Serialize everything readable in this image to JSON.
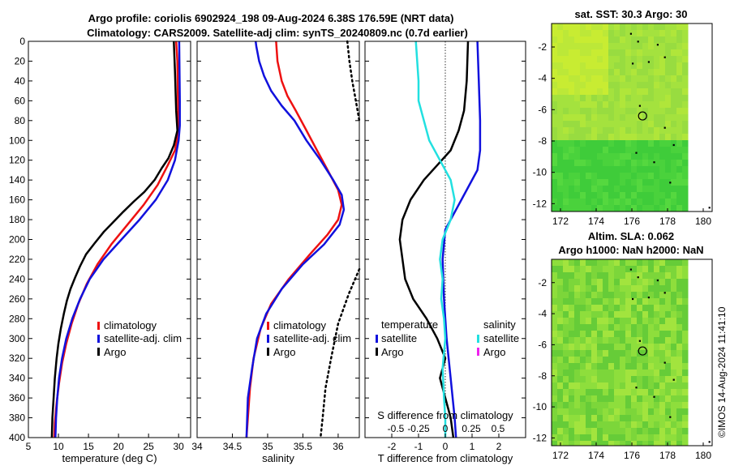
{
  "header": {
    "line1": "Argo profile: coriolis 6902924_198 09-Aug-2024 6.38S 176.59E (NRT data)",
    "line2": "Climatology: CARS2009. Satellite-adj clim: synTS_20240809.nc (0.7d earlier)"
  },
  "colors": {
    "climatology": "#ee1111",
    "satellite": "#1111dd",
    "argo": "#000000",
    "sat_salinity": "#22e0e0",
    "argo_salinity": "#ee22ee",
    "map_light": "#a8e63c",
    "map_dark": "#44cc33"
  },
  "chart_data": [
    {
      "id": "temperature",
      "type": "line",
      "xlabel": "temperature (deg C)",
      "ylabel": "depth",
      "xlim": [
        5,
        32
      ],
      "ylim": [
        0,
        400
      ],
      "xticks": [
        5,
        10,
        15,
        20,
        25,
        30
      ],
      "yticks": [
        0,
        20,
        40,
        60,
        80,
        100,
        120,
        140,
        160,
        180,
        200,
        220,
        240,
        260,
        280,
        300,
        320,
        340,
        360,
        380,
        400
      ],
      "legend": [
        "climatology",
        "satellite-adj. clim",
        "Argo"
      ],
      "series": [
        {
          "name": "climatology",
          "color": "#ee1111",
          "points": [
            [
              29.6,
              0
            ],
            [
              29.8,
              20
            ],
            [
              29.9,
              60
            ],
            [
              30.0,
              90
            ],
            [
              29.4,
              110
            ],
            [
              28.2,
              125
            ],
            [
              26.5,
              145
            ],
            [
              24.2,
              165
            ],
            [
              21.5,
              185
            ],
            [
              18.8,
              205
            ],
            [
              16.5,
              225
            ],
            [
              14.7,
              245
            ],
            [
              13.3,
              265
            ],
            [
              12.2,
              285
            ],
            [
              11.3,
              305
            ],
            [
              10.6,
              325
            ],
            [
              10.1,
              345
            ],
            [
              9.7,
              365
            ],
            [
              9.4,
              385
            ],
            [
              9.3,
              400
            ]
          ]
        },
        {
          "name": "satellite-adj. clim",
          "color": "#1111dd",
          "points": [
            [
              30.1,
              0
            ],
            [
              30.2,
              60
            ],
            [
              30.2,
              85
            ],
            [
              30.0,
              100
            ],
            [
              29.4,
              120
            ],
            [
              28.2,
              140
            ],
            [
              26.2,
              160
            ],
            [
              23.5,
              180
            ],
            [
              20.5,
              200
            ],
            [
              17.5,
              220
            ],
            [
              15.2,
              240
            ],
            [
              13.6,
              260
            ],
            [
              12.3,
              280
            ],
            [
              11.3,
              300
            ],
            [
              10.6,
              320
            ],
            [
              10.1,
              340
            ],
            [
              9.8,
              360
            ],
            [
              9.6,
              380
            ],
            [
              9.5,
              400
            ]
          ]
        },
        {
          "name": "Argo",
          "color": "#000000",
          "points": [
            [
              29.2,
              0
            ],
            [
              29.4,
              30
            ],
            [
              29.6,
              70
            ],
            [
              29.8,
              90
            ],
            [
              29.2,
              105
            ],
            [
              28.3,
              118
            ],
            [
              27.2,
              128
            ],
            [
              26.0,
              140
            ],
            [
              24.3,
              152
            ],
            [
              22.5,
              162
            ],
            [
              20.8,
              172
            ],
            [
              19.2,
              182
            ],
            [
              17.6,
              192
            ],
            [
              16.0,
              204
            ],
            [
              14.6,
              215
            ],
            [
              13.6,
              227
            ],
            [
              12.8,
              238
            ],
            [
              12.0,
              250
            ],
            [
              11.4,
              262
            ],
            [
              10.9,
              275
            ],
            [
              10.4,
              290
            ],
            [
              10.0,
              305
            ],
            [
              9.7,
              320
            ],
            [
              9.4,
              340
            ],
            [
              9.2,
              360
            ],
            [
              9.0,
              380
            ],
            [
              8.9,
              400
            ]
          ]
        }
      ]
    },
    {
      "id": "salinity",
      "type": "line",
      "xlabel": "salinity",
      "xlim": [
        34.0,
        36.3
      ],
      "ylim": [
        0,
        400
      ],
      "xticks": [
        34,
        34.5,
        35,
        35.5,
        36
      ],
      "legend": [
        "climatology",
        "satellite-adj. clim",
        "Argo"
      ],
      "series": [
        {
          "name": "climatology",
          "color": "#ee1111",
          "points": [
            [
              35.12,
              0
            ],
            [
              35.14,
              20
            ],
            [
              35.2,
              40
            ],
            [
              35.28,
              55
            ],
            [
              35.4,
              70
            ],
            [
              35.55,
              90
            ],
            [
              35.7,
              110
            ],
            [
              35.85,
              130
            ],
            [
              36.0,
              150
            ],
            [
              36.05,
              165
            ],
            [
              36.0,
              180
            ],
            [
              35.85,
              195
            ],
            [
              35.6,
              215
            ],
            [
              35.3,
              240
            ],
            [
              35.05,
              265
            ],
            [
              34.9,
              290
            ],
            [
              34.8,
              320
            ],
            [
              34.75,
              350
            ],
            [
              34.72,
              380
            ],
            [
              34.7,
              400
            ]
          ]
        },
        {
          "name": "satellite-adj. clim",
          "color": "#1111dd",
          "points": [
            [
              34.83,
              0
            ],
            [
              34.84,
              5
            ],
            [
              34.88,
              20
            ],
            [
              34.95,
              35
            ],
            [
              35.05,
              50
            ],
            [
              35.2,
              65
            ],
            [
              35.38,
              80
            ],
            [
              35.55,
              100
            ],
            [
              35.75,
              120
            ],
            [
              35.93,
              140
            ],
            [
              36.05,
              155
            ],
            [
              36.08,
              170
            ],
            [
              36.02,
              185
            ],
            [
              35.8,
              205
            ],
            [
              35.5,
              225
            ],
            [
              35.2,
              250
            ],
            [
              34.98,
              275
            ],
            [
              34.85,
              300
            ],
            [
              34.78,
              330
            ],
            [
              34.72,
              360
            ],
            [
              34.7,
              400
            ]
          ]
        },
        {
          "name": "salinity raw",
          "color": "#000000",
          "dotted": true,
          "points": [
            [
              36.13,
              0
            ],
            [
              36.16,
              20
            ],
            [
              36.2,
              40
            ],
            [
              36.25,
              60
            ],
            [
              36.3,
              80
            ]
          ]
        },
        {
          "name": "salinity raw deep",
          "color": "#000000",
          "dotted": true,
          "points": [
            [
              36.3,
              230
            ],
            [
              36.15,
              255
            ],
            [
              36.0,
              285
            ],
            [
              35.9,
              320
            ],
            [
              35.82,
              350
            ],
            [
              35.78,
              380
            ],
            [
              35.75,
              400
            ]
          ]
        }
      ]
    },
    {
      "id": "difference",
      "type": "line",
      "xlabel": "T difference from climatology",
      "xlabel_top": "S difference from climatology",
      "xlim": [
        -3,
        3
      ],
      "ylim": [
        0,
        400
      ],
      "xticks": [
        -2,
        -1,
        0,
        1,
        2
      ],
      "top_ticks": [
        "-0.5",
        "-0.25",
        "0",
        "0.25",
        "0.5"
      ],
      "legend": {
        "temperature_header": "temperature",
        "salinity_header": "salinity",
        "temperature": [
          "satellite",
          "Argo"
        ],
        "salinity": [
          "satellite",
          "Argo"
        ]
      },
      "series": [
        {
          "name": "temperature satellite",
          "color": "#1111dd",
          "points": [
            [
              1.2,
              0
            ],
            [
              1.25,
              40
            ],
            [
              1.3,
              80
            ],
            [
              1.3,
              110
            ],
            [
              1.2,
              130
            ],
            [
              0.6,
              160
            ],
            [
              0.0,
              190
            ],
            [
              -0.1,
              220
            ],
            [
              -0.05,
              260
            ],
            [
              0.05,
              300
            ],
            [
              0.2,
              340
            ],
            [
              0.35,
              380
            ],
            [
              0.4,
              400
            ]
          ]
        },
        {
          "name": "temperature Argo",
          "color": "#000000",
          "points": [
            [
              0.85,
              0
            ],
            [
              0.8,
              40
            ],
            [
              0.7,
              70
            ],
            [
              0.5,
              90
            ],
            [
              0.2,
              110
            ],
            [
              -0.3,
              125
            ],
            [
              -0.8,
              140
            ],
            [
              -1.3,
              160
            ],
            [
              -1.6,
              180
            ],
            [
              -1.7,
              200
            ],
            [
              -1.6,
              220
            ],
            [
              -1.5,
              240
            ],
            [
              -1.2,
              260
            ],
            [
              -0.7,
              280
            ],
            [
              -0.3,
              300
            ],
            [
              0.0,
              320
            ],
            [
              -0.2,
              340
            ],
            [
              0.0,
              360
            ],
            [
              0.2,
              380
            ],
            [
              0.3,
              400
            ]
          ]
        },
        {
          "name": "salinity satellite",
          "color": "#22e0e0",
          "points": [
            [
              -1.1,
              0
            ],
            [
              -1.0,
              40
            ],
            [
              -1.0,
              60
            ],
            [
              -0.8,
              80
            ],
            [
              -0.6,
              100
            ],
            [
              -0.2,
              120
            ],
            [
              0.2,
              140
            ],
            [
              0.35,
              160
            ],
            [
              0.2,
              180
            ],
            [
              -0.1,
              200
            ],
            [
              -0.2,
              220
            ],
            [
              -0.1,
              240
            ],
            [
              -0.15,
              260
            ],
            [
              -0.05,
              280
            ],
            [
              0.0,
              300
            ],
            [
              -0.1,
              330
            ],
            [
              -0.05,
              360
            ],
            [
              0.0,
              380
            ],
            [
              0.0,
              400
            ]
          ]
        }
      ]
    },
    {
      "id": "sst_map",
      "type": "heatmap",
      "title": "sat. SST: 30.3 Argo: 30",
      "xlim": [
        171.5,
        180.5
      ],
      "ylim": [
        -12.5,
        -0.5
      ],
      "xticks": [
        172,
        174,
        176,
        178,
        180
      ],
      "yticks": [
        -2,
        -4,
        -6,
        -8,
        -10,
        -12
      ],
      "marker": [
        176.6,
        -6.4
      ]
    },
    {
      "id": "sla_map",
      "type": "heatmap",
      "title": "Altim. SLA: 0.062",
      "subtitle": "Argo h1000: NaN h2000: NaN",
      "xlim": [
        171.5,
        180.5
      ],
      "ylim": [
        -12.5,
        -0.5
      ],
      "xticks": [
        172,
        174,
        176,
        178,
        180
      ],
      "yticks": [
        -2,
        -4,
        -6,
        -8,
        -10,
        -12
      ],
      "marker": [
        176.6,
        -6.4
      ]
    }
  ],
  "footer": {
    "credit": "©IMOS 14-Aug-2024 11:41:10"
  }
}
